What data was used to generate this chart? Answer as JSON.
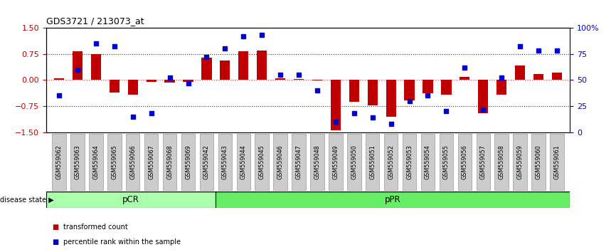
{
  "title": "GDS3721 / 213073_at",
  "samples": [
    "GSM559062",
    "GSM559063",
    "GSM559064",
    "GSM559065",
    "GSM559066",
    "GSM559067",
    "GSM559068",
    "GSM559069",
    "GSM559042",
    "GSM559043",
    "GSM559044",
    "GSM559045",
    "GSM559046",
    "GSM559047",
    "GSM559048",
    "GSM559049",
    "GSM559050",
    "GSM559051",
    "GSM559052",
    "GSM559053",
    "GSM559054",
    "GSM559055",
    "GSM559056",
    "GSM559057",
    "GSM559058",
    "GSM559059",
    "GSM559060",
    "GSM559061"
  ],
  "bar_values": [
    0.05,
    0.82,
    0.75,
    -0.35,
    -0.42,
    -0.05,
    -0.08,
    -0.05,
    0.65,
    0.55,
    0.82,
    0.85,
    0.05,
    0.02,
    -0.02,
    -1.45,
    -0.62,
    -0.72,
    -1.05,
    -0.58,
    -0.38,
    -0.42,
    0.08,
    -0.95,
    -0.42,
    0.42,
    0.18,
    0.22
  ],
  "percentile_values": [
    35,
    60,
    85,
    82,
    15,
    18,
    52,
    47,
    72,
    80,
    92,
    93,
    55,
    55,
    40,
    10,
    18,
    14,
    8,
    30,
    35,
    20,
    62,
    22,
    52,
    82,
    78,
    78
  ],
  "pCR_count": 9,
  "pPR_count": 19,
  "bar_color": "#c00000",
  "dot_color": "#0000cc",
  "pCR_color": "#aaffaa",
  "pPR_color": "#66ee66",
  "ylim": [
    -1.5,
    1.5
  ],
  "y2lim": [
    0,
    100
  ],
  "yticks": [
    -1.5,
    -0.75,
    0.0,
    0.75,
    1.5
  ],
  "y2ticks": [
    0,
    25,
    50,
    75,
    100
  ],
  "y2ticklabels": [
    "0",
    "25",
    "50",
    "75",
    "100%"
  ],
  "hline_zero_color": "#ff4444",
  "hline_other_color": "#333333",
  "legend_items": [
    "transformed count",
    "percentile rank within the sample"
  ],
  "disease_state_label": "disease state",
  "pCR_label": "pCR",
  "pPR_label": "pPR",
  "tick_bg_color": "#cccccc",
  "tick_bg_edge": "#999999"
}
